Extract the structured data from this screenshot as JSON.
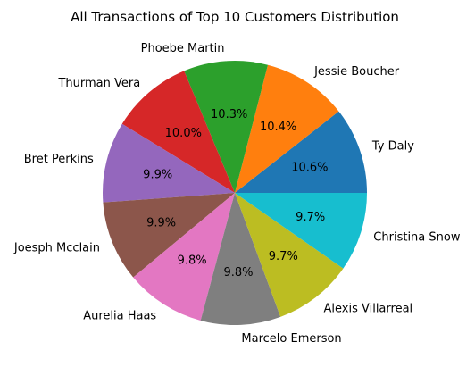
{
  "chart_data": {
    "type": "pie",
    "title": "All Transactions of Top 10 Customers Distribution",
    "slices": [
      {
        "label": "Ty Daly",
        "value": 10.6,
        "pct_label": "10.6%",
        "color": "#1f77b4"
      },
      {
        "label": "Jessie Boucher",
        "value": 10.4,
        "pct_label": "10.4%",
        "color": "#ff7f0e"
      },
      {
        "label": "Phoebe Martin",
        "value": 10.3,
        "pct_label": "10.3%",
        "color": "#2ca02c"
      },
      {
        "label": "Thurman Vera",
        "value": 10.0,
        "pct_label": "10.0%",
        "color": "#d62728"
      },
      {
        "label": "Bret Perkins",
        "value": 9.9,
        "pct_label": "9.9%",
        "color": "#9467bd"
      },
      {
        "label": "Joesph Mcclain",
        "value": 9.9,
        "pct_label": "9.9%",
        "color": "#8c564b"
      },
      {
        "label": "Aurelia Haas",
        "value": 9.8,
        "pct_label": "9.8%",
        "color": "#e377c2"
      },
      {
        "label": "Marcelo Emerson",
        "value": 9.8,
        "pct_label": "9.8%",
        "color": "#7f7f7f"
      },
      {
        "label": "Alexis Villarreal",
        "value": 9.7,
        "pct_label": "9.7%",
        "color": "#bcbd22"
      },
      {
        "label": "Christina Snow",
        "value": 9.7,
        "pct_label": "9.7%",
        "color": "#17becf"
      }
    ]
  }
}
